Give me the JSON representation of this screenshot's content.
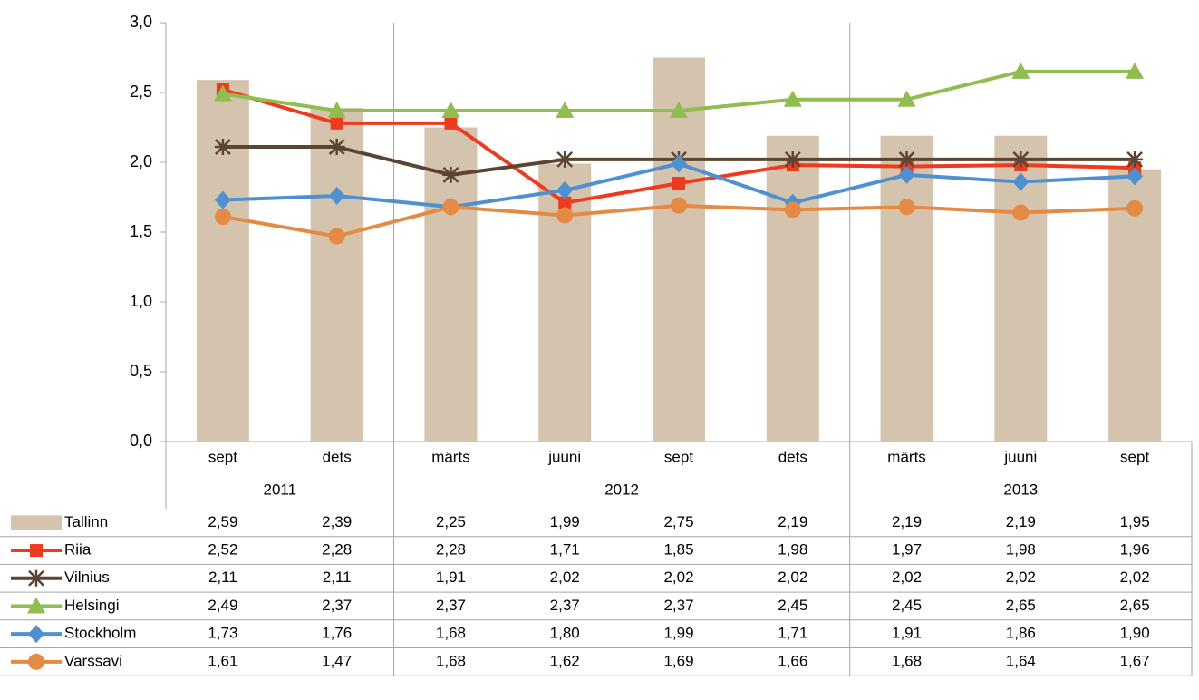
{
  "chart_data": {
    "type": "combo",
    "categories": [
      "sept",
      "dets",
      "märts",
      "juuni",
      "sept",
      "dets",
      "märts",
      "juuni",
      "sept"
    ],
    "groups": [
      {
        "label": "2011",
        "span": 2
      },
      {
        "label": "2012",
        "span": 4
      },
      {
        "label": "2013",
        "span": 3
      }
    ],
    "ylim": [
      0,
      3
    ],
    "yticks": [
      {
        "value": 0,
        "label": "0,0"
      },
      {
        "value": 0.5,
        "label": "0,5"
      },
      {
        "value": 1,
        "label": "1,0"
      },
      {
        "value": 1.5,
        "label": "1,5"
      },
      {
        "value": 2,
        "label": "2,0"
      },
      {
        "value": 2.5,
        "label": "2,5"
      },
      {
        "value": 3,
        "label": "3,0"
      }
    ],
    "grid": false,
    "data_table": true,
    "series": [
      {
        "name": "Tallinn",
        "type": "bar",
        "color": "#d5c4ad",
        "values": [
          2.59,
          2.39,
          2.25,
          1.99,
          2.75,
          2.19,
          2.19,
          2.19,
          1.95
        ],
        "value_labels": [
          "2,59",
          "2,39",
          "2,25",
          "1,99",
          "2,75",
          "2,19",
          "2,19",
          "2,19",
          "1,95"
        ]
      },
      {
        "name": "Riia",
        "type": "line",
        "marker": "square",
        "color": "#ee3b1f",
        "values": [
          2.52,
          2.28,
          2.28,
          1.71,
          1.85,
          1.98,
          1.97,
          1.98,
          1.96
        ],
        "value_labels": [
          "2,52",
          "2,28",
          "2,28",
          "1,71",
          "1,85",
          "1,98",
          "1,97",
          "1,98",
          "1,96"
        ]
      },
      {
        "name": "Vilnius",
        "type": "line",
        "marker": "star",
        "color": "#5b4532",
        "values": [
          2.11,
          2.11,
          1.91,
          2.02,
          2.02,
          2.02,
          2.02,
          2.02,
          2.02
        ],
        "value_labels": [
          "2,11",
          "2,11",
          "1,91",
          "2,02",
          "2,02",
          "2,02",
          "2,02",
          "2,02",
          "2,02"
        ]
      },
      {
        "name": "Helsingi",
        "type": "line",
        "marker": "triangle",
        "color": "#8fbd4f",
        "values": [
          2.49,
          2.37,
          2.37,
          2.37,
          2.37,
          2.45,
          2.45,
          2.65,
          2.65
        ],
        "value_labels": [
          "2,49",
          "2,37",
          "2,37",
          "2,37",
          "2,37",
          "2,45",
          "2,45",
          "2,65",
          "2,65"
        ]
      },
      {
        "name": "Stockholm",
        "type": "line",
        "marker": "diamond",
        "color": "#4f90d1",
        "values": [
          1.73,
          1.76,
          1.68,
          1.8,
          1.99,
          1.71,
          1.91,
          1.86,
          1.9
        ],
        "value_labels": [
          "1,73",
          "1,76",
          "1,68",
          "1,80",
          "1,99",
          "1,71",
          "1,91",
          "1,86",
          "1,90"
        ]
      },
      {
        "name": "Varssavi",
        "type": "line",
        "marker": "circle",
        "color": "#e58a45",
        "values": [
          1.61,
          1.47,
          1.68,
          1.62,
          1.69,
          1.66,
          1.68,
          1.64,
          1.67
        ],
        "value_labels": [
          "1,61",
          "1,47",
          "1,68",
          "1,62",
          "1,69",
          "1,66",
          "1,68",
          "1,64",
          "1,67"
        ]
      }
    ]
  }
}
